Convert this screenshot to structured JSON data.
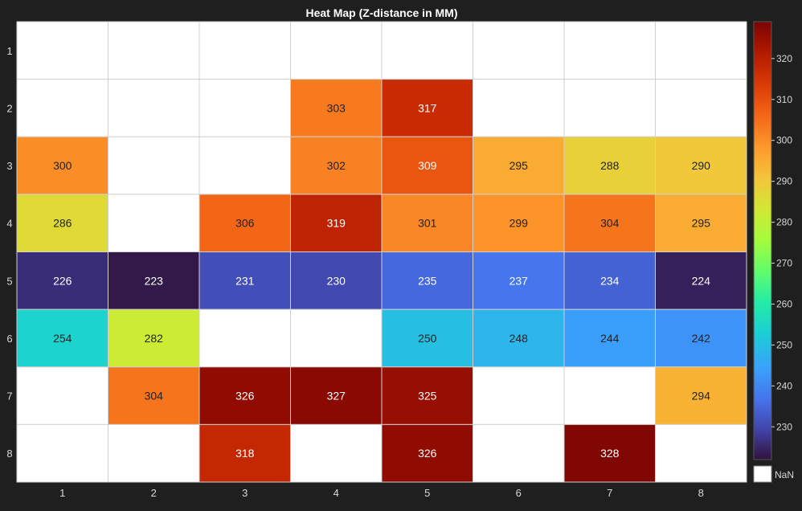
{
  "chart_data": {
    "type": "heatmap",
    "title": "Heat Map (Z-distance in MM)",
    "x_ticks": [
      "1",
      "2",
      "3",
      "4",
      "5",
      "6",
      "7",
      "8"
    ],
    "y_ticks": [
      "1",
      "2",
      "3",
      "4",
      "5",
      "6",
      "7",
      "8"
    ],
    "values": [
      [
        null,
        null,
        null,
        null,
        null,
        null,
        null,
        null
      ],
      [
        null,
        null,
        null,
        303,
        317,
        null,
        null,
        null
      ],
      [
        300,
        null,
        null,
        302,
        309,
        295,
        288,
        290
      ],
      [
        286,
        null,
        306,
        319,
        301,
        299,
        304,
        295
      ],
      [
        226,
        223,
        231,
        230,
        235,
        237,
        234,
        224
      ],
      [
        254,
        282,
        null,
        null,
        250,
        248,
        244,
        242
      ],
      [
        null,
        304,
        326,
        327,
        325,
        null,
        null,
        294
      ],
      [
        null,
        null,
        318,
        null,
        326,
        null,
        328,
        null
      ]
    ],
    "colorbar": {
      "min": 222,
      "max": 329,
      "colormap": "turbo",
      "ticks": [
        230,
        240,
        250,
        260,
        270,
        280,
        290,
        300,
        310,
        320
      ],
      "tick_labels": [
        "230",
        "240",
        "250",
        "260",
        "270",
        "280",
        "290",
        "300",
        "310",
        "320"
      ]
    },
    "nan_label": "NaN",
    "nan_color": "#ffffff"
  }
}
